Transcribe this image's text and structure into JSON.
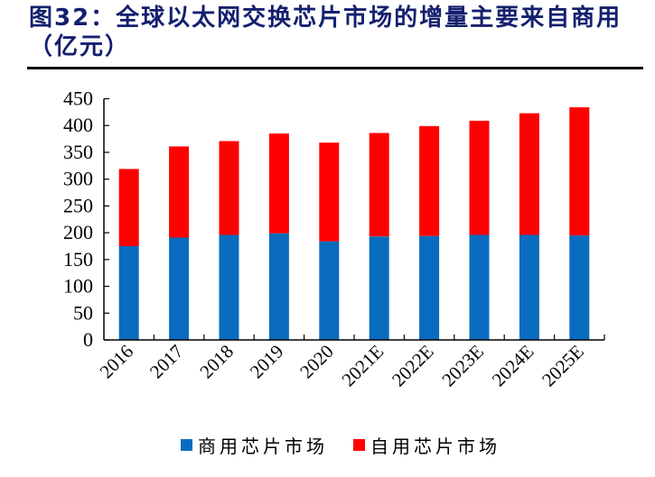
{
  "title": {
    "line1": "图32：全球以太网交换芯片市场的增量主要来自商用",
    "line2": "（亿元）"
  },
  "colors": {
    "title": "#14206e",
    "commercial": "#0a6cbf",
    "self_use": "#ff0000"
  },
  "legend": [
    {
      "label": "商用芯片市场",
      "color": "#0a6cbf"
    },
    {
      "label": "自用芯片市场",
      "color": "#ff0000"
    }
  ],
  "chart_data": {
    "type": "bar",
    "stacked": true,
    "title": "图32：全球以太网交换芯片市场的增量主要来自商用（亿元）",
    "xlabel": "",
    "ylabel": "",
    "ylim": [
      0,
      450
    ],
    "yticks": [
      0,
      50,
      100,
      150,
      200,
      250,
      300,
      350,
      400,
      450
    ],
    "grid": false,
    "legend_position": "bottom",
    "categories": [
      "2016",
      "2017",
      "2018",
      "2019",
      "2020",
      "2021E",
      "2022E",
      "2023E",
      "2024E",
      "2025E"
    ],
    "series": [
      {
        "name": "商用芯片市场",
        "color": "#0a6cbf",
        "values": [
          175,
          191,
          196,
          199,
          184,
          193,
          194,
          196,
          196,
          195
        ]
      },
      {
        "name": "自用芯片市场",
        "color": "#ff0000",
        "values": [
          144,
          170,
          175,
          186,
          184,
          193,
          205,
          213,
          227,
          239
        ]
      }
    ],
    "totals": [
      319,
      361,
      371,
      385,
      368,
      386,
      399,
      409,
      423,
      434
    ]
  }
}
